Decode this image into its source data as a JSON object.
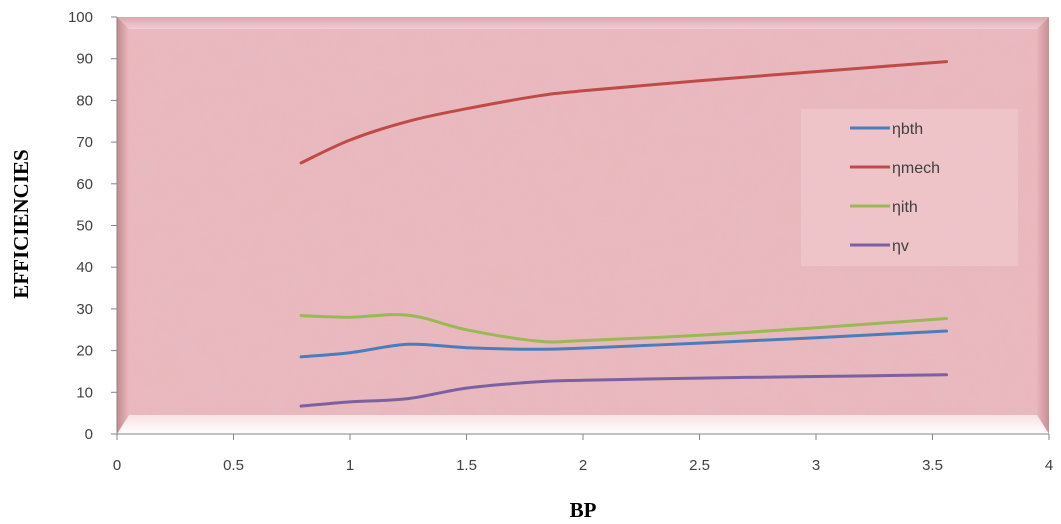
{
  "chart_data": {
    "type": "line",
    "title": "",
    "xlabel": "BP",
    "ylabel": "EFFICIENCIES",
    "xlim": [
      0,
      4
    ],
    "ylim": [
      0,
      100
    ],
    "x_ticks": [
      "0",
      "0.5",
      "1",
      "1.5",
      "2",
      "2.5",
      "3",
      "3.5",
      "4"
    ],
    "y_ticks": [
      "0",
      "10",
      "20",
      "30",
      "40",
      "50",
      "60",
      "70",
      "80",
      "90",
      "100"
    ],
    "grid": false,
    "legend_position": "right",
    "background": "pink textured marble with bevelled frame",
    "x": [
      0.79,
      1.0,
      1.25,
      1.5,
      1.8,
      2.0,
      2.5,
      3.0,
      3.56
    ],
    "series": [
      {
        "name": "ηbth",
        "color": "#4a7ebb",
        "values": [
          18.5,
          19.5,
          21.5,
          20.7,
          20.3,
          20.6,
          21.8,
          23.1,
          24.7
        ]
      },
      {
        "name": "ηmech",
        "color": "#be4b48",
        "values": [
          65.0,
          70.5,
          75.0,
          78.0,
          81.0,
          82.3,
          84.7,
          86.9,
          89.3
        ]
      },
      {
        "name": "ηith",
        "color": "#98b954",
        "values": [
          28.4,
          28.0,
          28.5,
          25.0,
          22.3,
          22.4,
          23.7,
          25.5,
          27.7
        ]
      },
      {
        "name": "ηv",
        "color": "#7d60a0",
        "values": [
          6.7,
          7.7,
          8.5,
          11.0,
          12.5,
          12.9,
          13.4,
          13.8,
          14.2
        ]
      }
    ]
  }
}
